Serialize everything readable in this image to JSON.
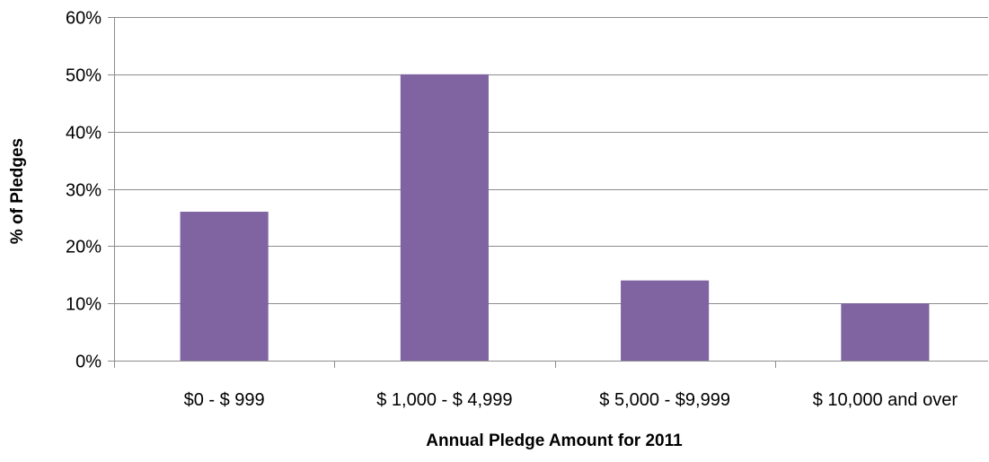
{
  "chart_data": {
    "type": "bar",
    "title": "",
    "xlabel": "Annual Pledge Amount  for 2011",
    "ylabel": "% of Pledges",
    "categories": [
      "$0 -  $ 999",
      "$ 1,000 - $ 4,999",
      "$ 5,000 - $9,999",
      "$ 10,000 and over"
    ],
    "values": [
      26,
      50,
      14,
      10
    ],
    "value_format": "percent",
    "ylim": [
      0,
      60
    ],
    "yticks": [
      0,
      10,
      20,
      30,
      40,
      50,
      60
    ],
    "ytick_labels": [
      "0%",
      "10%",
      "20%",
      "30%",
      "40%",
      "50%",
      "60%"
    ],
    "grid": true,
    "legend": "none",
    "colors": {
      "bar": "#8064a2",
      "grid": "#8c8c8c",
      "axis": "#8c8c8c"
    }
  }
}
